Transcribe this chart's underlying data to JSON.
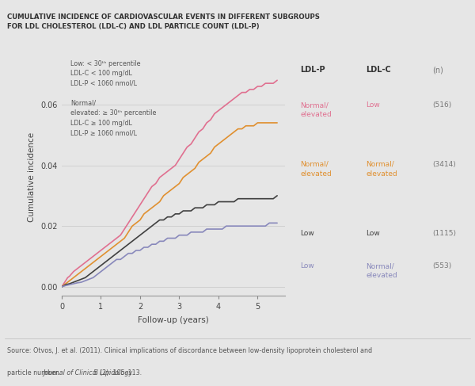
{
  "title_line1": "CUMULATIVE INCIDENCE OF CARDIOVASCULAR EVENTS IN DIFFERENT SUBGROUPS",
  "title_line2": "FOR LDL CHOLESTEROL (LDL-C) AND LDL PARTICLE COUNT (LDL-P)",
  "xlabel": "Follow-up (years)",
  "ylabel": "Cumulative incidence",
  "source_line1": "Source: Otvos, J. et al. (2011). Clinical implications of discordance between low-density lipoprotein cholesterol and",
  "source_line2": "particle number. ",
  "source_italic": "Journal of Clinical Lipidology",
  "source_end": " 5 (2): 105–113.",
  "bg_color": "#e6e6e6",
  "title_bg_color": "#d3d3d3",
  "xlim": [
    0,
    5.7
  ],
  "ylim": [
    -0.003,
    0.075
  ],
  "yticks": [
    0,
    0.02,
    0.04,
    0.06
  ],
  "xticks": [
    0,
    1,
    2,
    3,
    4,
    5
  ],
  "legend_header_ldlp": "LDL-P",
  "legend_header_ldlc": "LDL-C",
  "legend_header_n": "(n)",
  "legend_entries": [
    {
      "ldlp": "Normal/\nelevated",
      "ldlc": "Low",
      "n": "(516)",
      "color": "#e07090"
    },
    {
      "ldlp": "Normal/\nelevated",
      "ldlc": "Normal/\nelevated",
      "n": "(3414)",
      "color": "#e09030"
    },
    {
      "ldlp": "Low",
      "ldlc": "Low",
      "n": "(1115)",
      "color": "#404040"
    },
    {
      "ldlp": "Low",
      "ldlc": "Normal/\nelevated",
      "n": "(553)",
      "color": "#8888bb"
    }
  ],
  "curves": {
    "pink": {
      "color": "#e07090",
      "x": [
        0,
        0.05,
        0.1,
        0.15,
        0.2,
        0.3,
        0.4,
        0.5,
        0.6,
        0.7,
        0.8,
        0.9,
        1.0,
        1.1,
        1.2,
        1.3,
        1.4,
        1.5,
        1.6,
        1.7,
        1.8,
        1.9,
        2.0,
        2.1,
        2.2,
        2.3,
        2.4,
        2.5,
        2.6,
        2.7,
        2.8,
        2.9,
        3.0,
        3.1,
        3.2,
        3.3,
        3.4,
        3.5,
        3.6,
        3.7,
        3.8,
        3.9,
        4.0,
        4.1,
        4.2,
        4.3,
        4.4,
        4.5,
        4.6,
        4.7,
        4.8,
        4.9,
        5.0,
        5.1,
        5.2,
        5.3,
        5.4,
        5.5
      ],
      "y": [
        0,
        0.001,
        0.002,
        0.003,
        0.0035,
        0.005,
        0.006,
        0.007,
        0.008,
        0.009,
        0.01,
        0.011,
        0.012,
        0.013,
        0.014,
        0.015,
        0.016,
        0.017,
        0.019,
        0.021,
        0.023,
        0.025,
        0.027,
        0.029,
        0.031,
        0.033,
        0.034,
        0.036,
        0.037,
        0.038,
        0.039,
        0.04,
        0.042,
        0.044,
        0.046,
        0.047,
        0.049,
        0.051,
        0.052,
        0.054,
        0.055,
        0.057,
        0.058,
        0.059,
        0.06,
        0.061,
        0.062,
        0.063,
        0.064,
        0.064,
        0.065,
        0.065,
        0.066,
        0.066,
        0.067,
        0.067,
        0.067,
        0.068
      ]
    },
    "orange": {
      "color": "#e09030",
      "x": [
        0,
        0.05,
        0.1,
        0.2,
        0.3,
        0.4,
        0.5,
        0.6,
        0.7,
        0.8,
        0.9,
        1.0,
        1.1,
        1.2,
        1.3,
        1.4,
        1.5,
        1.6,
        1.7,
        1.8,
        1.9,
        2.0,
        2.1,
        2.2,
        2.3,
        2.4,
        2.5,
        2.6,
        2.7,
        2.8,
        2.9,
        3.0,
        3.1,
        3.2,
        3.3,
        3.4,
        3.5,
        3.6,
        3.7,
        3.8,
        3.9,
        4.0,
        4.1,
        4.2,
        4.3,
        4.4,
        4.5,
        4.6,
        4.7,
        4.8,
        4.9,
        5.0,
        5.1,
        5.2,
        5.3,
        5.4,
        5.5
      ],
      "y": [
        0,
        0.0005,
        0.001,
        0.002,
        0.003,
        0.004,
        0.005,
        0.006,
        0.007,
        0.008,
        0.009,
        0.01,
        0.011,
        0.012,
        0.013,
        0.014,
        0.015,
        0.016,
        0.018,
        0.02,
        0.021,
        0.022,
        0.024,
        0.025,
        0.026,
        0.027,
        0.028,
        0.03,
        0.031,
        0.032,
        0.033,
        0.034,
        0.036,
        0.037,
        0.038,
        0.039,
        0.041,
        0.042,
        0.043,
        0.044,
        0.046,
        0.047,
        0.048,
        0.049,
        0.05,
        0.051,
        0.052,
        0.052,
        0.053,
        0.053,
        0.053,
        0.054,
        0.054,
        0.054,
        0.054,
        0.054,
        0.054
      ]
    },
    "black": {
      "color": "#404040",
      "x": [
        0,
        0.05,
        0.1,
        0.2,
        0.3,
        0.4,
        0.5,
        0.6,
        0.7,
        0.8,
        0.9,
        1.0,
        1.1,
        1.2,
        1.3,
        1.4,
        1.5,
        1.6,
        1.7,
        1.8,
        1.9,
        2.0,
        2.1,
        2.2,
        2.3,
        2.4,
        2.5,
        2.6,
        2.7,
        2.8,
        2.9,
        3.0,
        3.1,
        3.2,
        3.3,
        3.4,
        3.5,
        3.6,
        3.7,
        3.8,
        3.9,
        4.0,
        4.1,
        4.2,
        4.3,
        4.4,
        4.5,
        4.6,
        4.7,
        4.8,
        4.9,
        5.0,
        5.1,
        5.2,
        5.3,
        5.4,
        5.5
      ],
      "y": [
        0,
        0.0003,
        0.0007,
        0.001,
        0.0015,
        0.002,
        0.0025,
        0.003,
        0.004,
        0.005,
        0.006,
        0.007,
        0.008,
        0.009,
        0.01,
        0.011,
        0.012,
        0.013,
        0.014,
        0.015,
        0.016,
        0.017,
        0.018,
        0.019,
        0.02,
        0.021,
        0.022,
        0.022,
        0.023,
        0.023,
        0.024,
        0.024,
        0.025,
        0.025,
        0.025,
        0.026,
        0.026,
        0.026,
        0.027,
        0.027,
        0.027,
        0.028,
        0.028,
        0.028,
        0.028,
        0.028,
        0.029,
        0.029,
        0.029,
        0.029,
        0.029,
        0.029,
        0.029,
        0.029,
        0.029,
        0.029,
        0.03
      ]
    },
    "blue": {
      "color": "#8888bb",
      "x": [
        0,
        0.05,
        0.1,
        0.2,
        0.3,
        0.4,
        0.5,
        0.6,
        0.7,
        0.8,
        0.9,
        1.0,
        1.1,
        1.2,
        1.3,
        1.4,
        1.5,
        1.6,
        1.7,
        1.8,
        1.9,
        2.0,
        2.1,
        2.2,
        2.3,
        2.4,
        2.5,
        2.6,
        2.7,
        2.8,
        2.9,
        3.0,
        3.1,
        3.2,
        3.3,
        3.4,
        3.5,
        3.6,
        3.7,
        3.8,
        3.9,
        4.0,
        4.1,
        4.2,
        4.3,
        4.4,
        4.5,
        4.6,
        4.7,
        4.8,
        4.9,
        5.0,
        5.1,
        5.2,
        5.3,
        5.4,
        5.5
      ],
      "y": [
        0,
        0.0002,
        0.0004,
        0.0007,
        0.001,
        0.0013,
        0.0015,
        0.002,
        0.0025,
        0.003,
        0.004,
        0.005,
        0.006,
        0.007,
        0.008,
        0.009,
        0.009,
        0.01,
        0.011,
        0.011,
        0.012,
        0.012,
        0.013,
        0.013,
        0.014,
        0.014,
        0.015,
        0.015,
        0.016,
        0.016,
        0.016,
        0.017,
        0.017,
        0.017,
        0.018,
        0.018,
        0.018,
        0.018,
        0.019,
        0.019,
        0.019,
        0.019,
        0.019,
        0.02,
        0.02,
        0.02,
        0.02,
        0.02,
        0.02,
        0.02,
        0.02,
        0.02,
        0.02,
        0.02,
        0.021,
        0.021,
        0.021
      ]
    }
  }
}
